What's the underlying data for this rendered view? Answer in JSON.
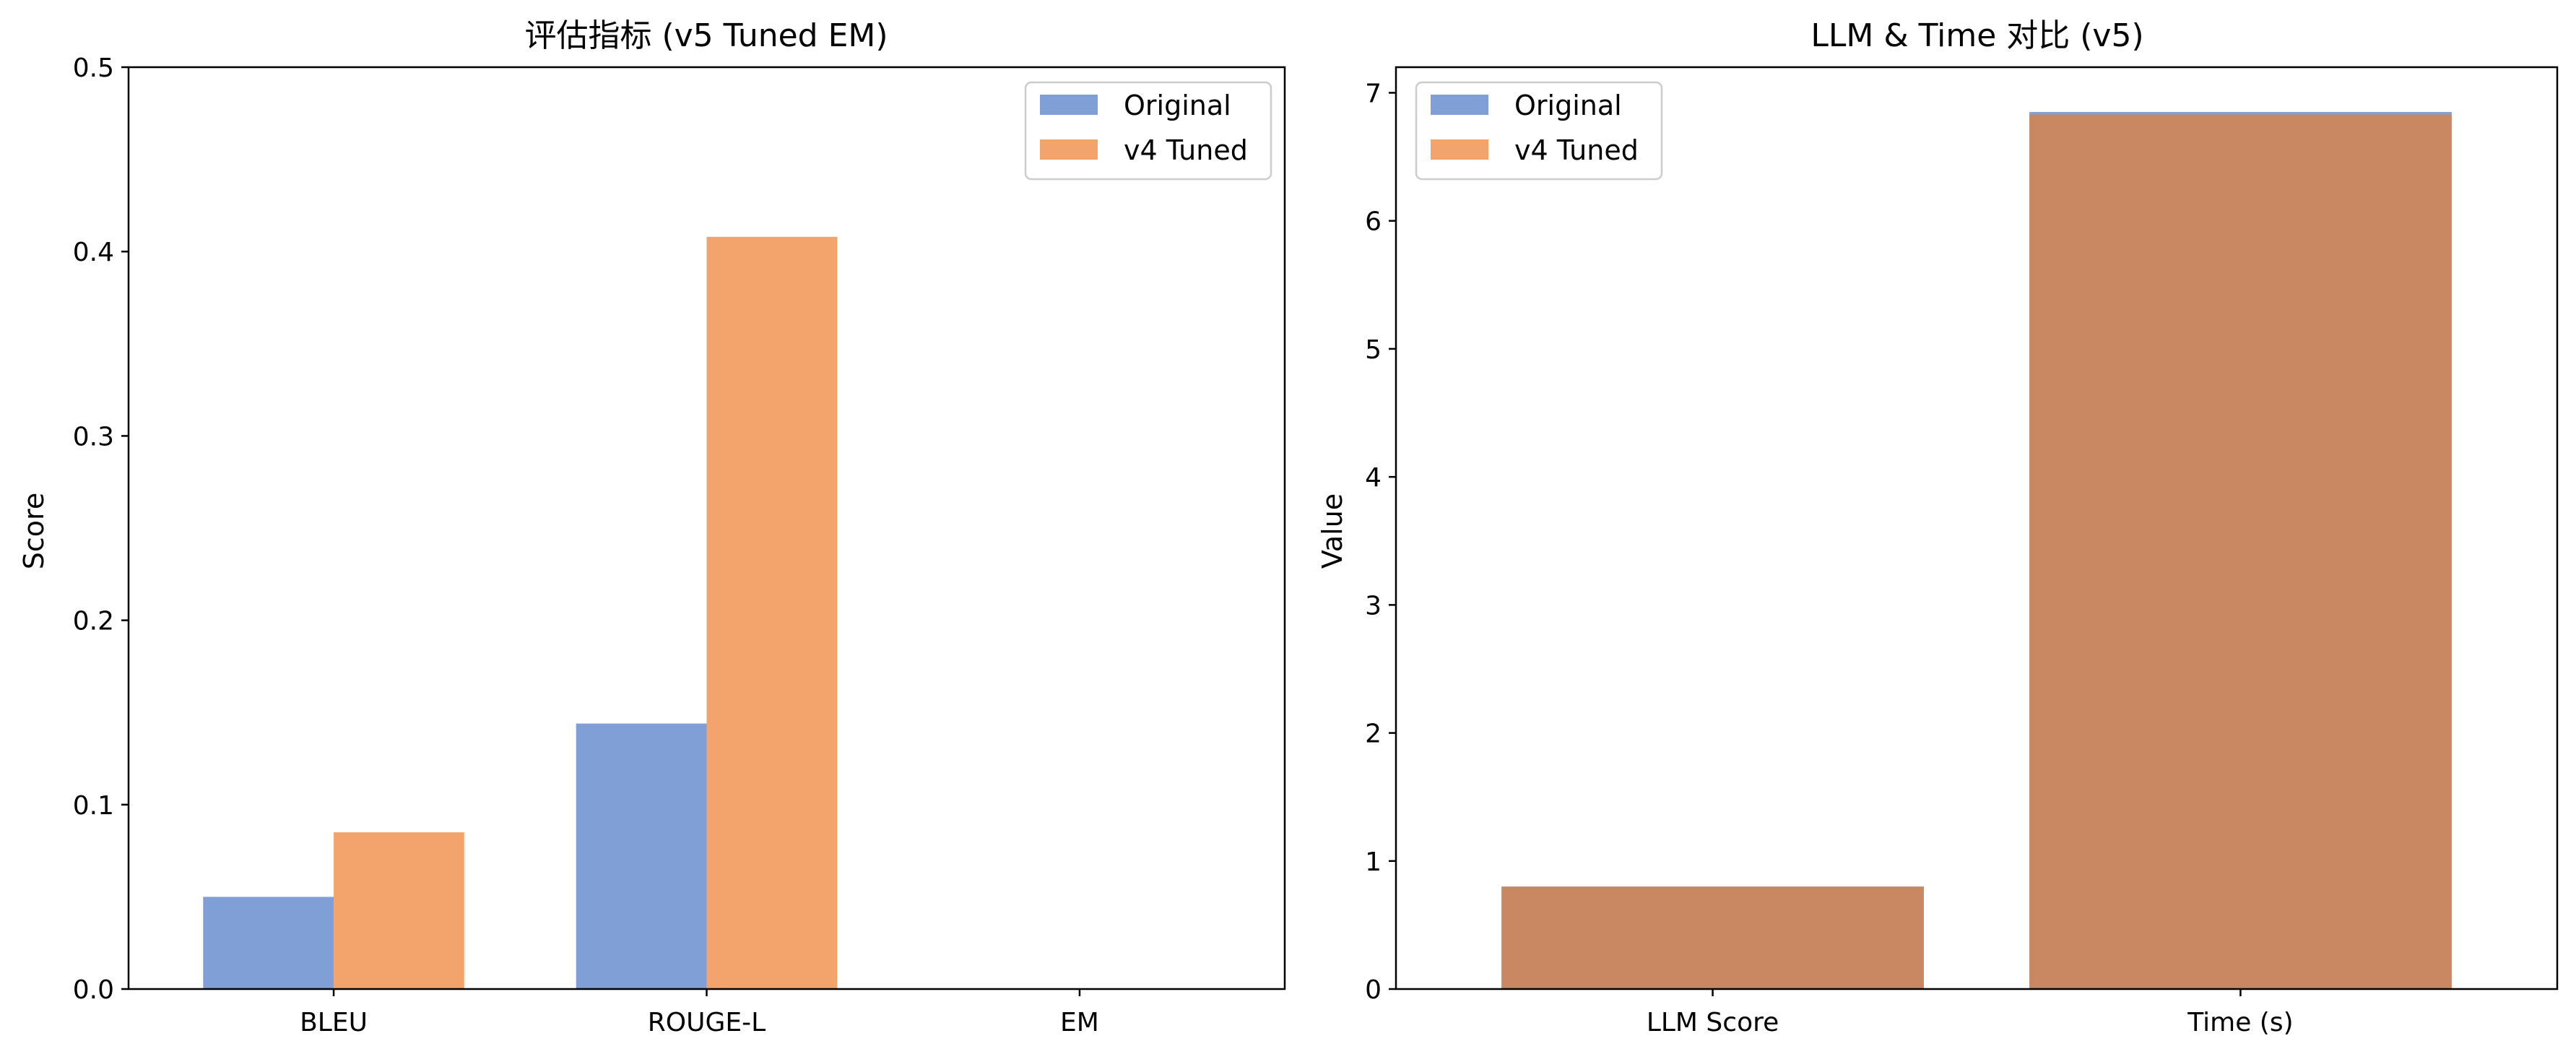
{
  "chart_data": [
    {
      "type": "bar",
      "title": "评估指标 (v5 Tuned EM)",
      "xlabel": "",
      "ylabel": "Score",
      "ylim": [
        0,
        0.5
      ],
      "yticks": [
        "0.0",
        "0.1",
        "0.2",
        "0.3",
        "0.4",
        "0.5"
      ],
      "categories": [
        "BLEU",
        "ROUGE-L",
        "EM"
      ],
      "series": [
        {
          "name": "Original",
          "values": [
            0.05,
            0.144,
            0.0
          ],
          "color": "#7f9fd6"
        },
        {
          "name": "v4 Tuned",
          "values": [
            0.085,
            0.408,
            0.0
          ],
          "color": "#f3a46d"
        }
      ],
      "legend": "upper right",
      "grouping": "side-by-side"
    },
    {
      "type": "bar",
      "title": "LLM & Time 对比 (v5)",
      "xlabel": "",
      "ylabel": "Value",
      "ylim": [
        0,
        7.2
      ],
      "yticks": [
        "0",
        "1",
        "2",
        "3",
        "4",
        "5",
        "6",
        "7"
      ],
      "categories": [
        "LLM Score",
        "Time (s)"
      ],
      "series": [
        {
          "name": "Original",
          "values": [
            0.8,
            6.85
          ],
          "color": "#7f9fd6"
        },
        {
          "name": "v4 Tuned",
          "values": [
            0.8,
            6.83
          ],
          "color": "#f3a46d"
        }
      ],
      "overlap_color": "#ca8862",
      "legend": "upper left",
      "grouping": "overlaid"
    }
  ]
}
